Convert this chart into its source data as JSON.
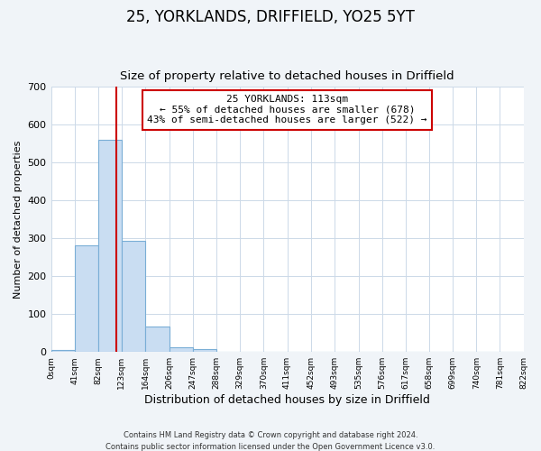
{
  "title": "25, YORKLANDS, DRIFFIELD, YO25 5YT",
  "subtitle": "Size of property relative to detached houses in Driffield",
  "xlabel": "Distribution of detached houses by size in Driffield",
  "ylabel": "Number of detached properties",
  "bin_edges": [
    0,
    41,
    82,
    123,
    164,
    206,
    247,
    288,
    329,
    370,
    411,
    452,
    493,
    535,
    576,
    617,
    658,
    699,
    740,
    781,
    822
  ],
  "bar_heights": [
    5,
    282,
    560,
    293,
    68,
    13,
    8,
    1,
    0,
    0,
    0,
    0,
    0,
    0,
    0,
    0,
    0,
    0,
    0,
    0
  ],
  "bar_color": "#c9ddf2",
  "bar_edge_color": "#7aaed6",
  "property_line_x": 113,
  "property_line_color": "#cc0000",
  "annotation_title": "25 YORKLANDS: 113sqm",
  "annotation_line1": "← 55% of detached houses are smaller (678)",
  "annotation_line2": "43% of semi-detached houses are larger (522) →",
  "annotation_box_color": "#cc0000",
  "annotation_box_fill": "#ffffff",
  "ylim": [
    0,
    700
  ],
  "yticks": [
    0,
    100,
    200,
    300,
    400,
    500,
    600,
    700
  ],
  "tick_labels": [
    "0sqm",
    "41sqm",
    "82sqm",
    "123sqm",
    "164sqm",
    "206sqm",
    "247sqm",
    "288sqm",
    "329sqm",
    "370sqm",
    "411sqm",
    "452sqm",
    "493sqm",
    "535sqm",
    "576sqm",
    "617sqm",
    "658sqm",
    "699sqm",
    "740sqm",
    "781sqm",
    "822sqm"
  ],
  "footer_line1": "Contains HM Land Registry data © Crown copyright and database right 2024.",
  "footer_line2": "Contains public sector information licensed under the Open Government Licence v3.0.",
  "background_color": "#f0f4f8",
  "plot_background_color": "#ffffff",
  "grid_color": "#ccd9e8"
}
